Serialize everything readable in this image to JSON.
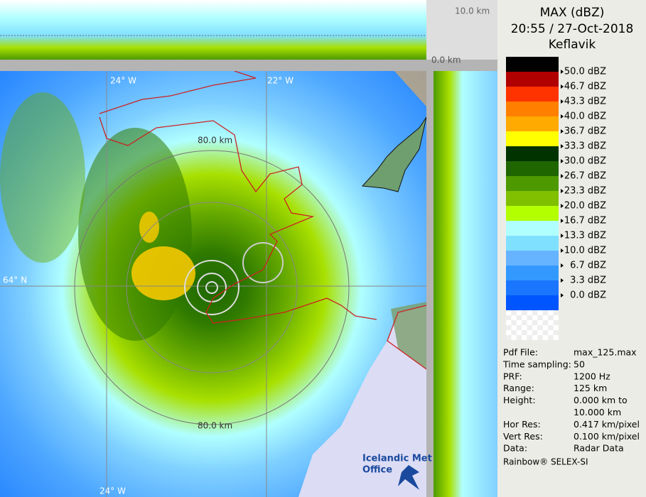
{
  "map": {
    "labels": [
      "24° W",
      "22° W",
      "64° N",
      "80.0 km",
      "80.0 km",
      "24° W",
      "10.0 km",
      "0.0 km"
    ],
    "logo": [
      "Icelandic Met",
      "Office"
    ]
  },
  "panel": {
    "title": "MAX (dBZ)",
    "time": "20:55 / 27-Oct-2018",
    "site": "Keflavik",
    "legend": {
      "colors": [
        "#000000",
        "#b00000",
        "#ff3300",
        "#ff7f00",
        "#ffaa00",
        "#ffff00",
        "#003300",
        "#1f6600",
        "#4d9900",
        "#80c000",
        "#b3ff00",
        "#b0ffff",
        "#80e0ff",
        "#66b3ff",
        "#3399ff",
        "#1a75ff",
        "#0055ff"
      ],
      "labels": [
        "50.0 dBZ",
        "46.7 dBZ",
        "43.3 dBZ",
        "40.0 dBZ",
        "36.7 dBZ",
        "33.3 dBZ",
        "30.0 dBZ",
        "26.7 dBZ",
        "23.3 dBZ",
        "20.0 dBZ",
        "16.7 dBZ",
        "13.3 dBZ",
        "10.0 dBZ",
        "6.7 dBZ",
        "3.3 dBZ",
        "0.0 dBZ"
      ]
    },
    "info": [
      [
        "Pdf File:",
        "max_125.max"
      ],
      [
        "Time sampling:",
        "50"
      ],
      [
        "PRF:",
        "1200 Hz"
      ],
      [
        "Range:",
        "125 km"
      ],
      [
        "Height:",
        "0.000 km to"
      ],
      [
        "",
        "10.000 km"
      ],
      [
        "Hor Res:",
        "0.417 km/pixel"
      ],
      [
        "Vert Res:",
        "0.100 km/pixel"
      ],
      [
        "Data:",
        "Radar Data"
      ]
    ],
    "footer": "Rainbow® SELEX-SI"
  }
}
